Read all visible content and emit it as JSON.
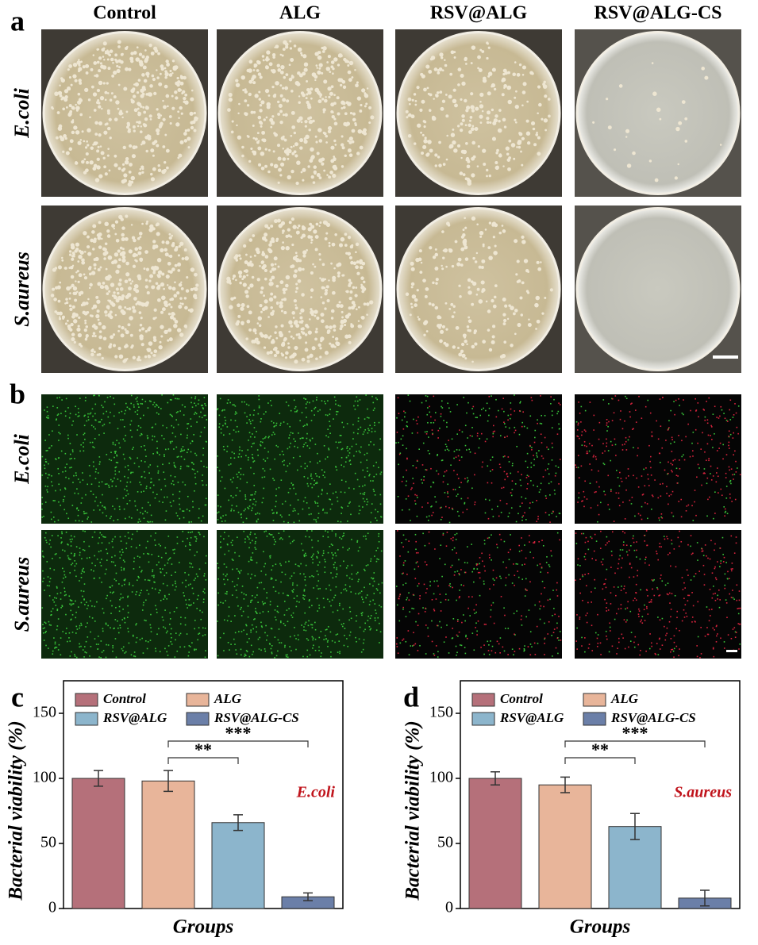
{
  "figure": {
    "panel_labels": [
      "a",
      "b",
      "c",
      "d"
    ],
    "columns": [
      "Control",
      "ALG",
      "RSV@ALG",
      "RSV@ALG-CS"
    ],
    "rows_a": [
      "E.coli",
      "S.aureus"
    ],
    "rows_b": [
      "E.coli",
      "S.aureus"
    ]
  },
  "chart_data": [
    {
      "type": "bar",
      "categories": [
        "Control",
        "ALG",
        "RSV@ALG",
        "RSV@ALG-CS"
      ],
      "values": [
        100,
        98,
        66,
        9
      ],
      "errors": [
        6,
        8,
        6,
        3
      ],
      "colors": [
        "#b5707a",
        "#e8b59a",
        "#8cb5cc",
        "#6b7fa8"
      ],
      "xlabel": "Groups",
      "ylabel": "Bacterial viability (%)",
      "annotation": "E.coli",
      "significance": [
        "**",
        "***"
      ],
      "legend": true,
      "ylim": [
        0,
        175
      ],
      "yticks": [
        0,
        50,
        100,
        150
      ]
    },
    {
      "type": "bar",
      "categories": [
        "Control",
        "ALG",
        "RSV@ALG",
        "RSV@ALG-CS"
      ],
      "values": [
        100,
        95,
        63,
        8
      ],
      "errors": [
        5,
        6,
        10,
        6
      ],
      "colors": [
        "#b5707a",
        "#e8b59a",
        "#8cb5cc",
        "#6b7fa8"
      ],
      "xlabel": "Groups",
      "ylabel": "Bacterial viability (%)",
      "annotation": "S.aureus",
      "significance": [
        "**",
        "***"
      ],
      "legend": true,
      "ylim": [
        0,
        175
      ],
      "yticks": [
        0,
        50,
        100,
        150
      ]
    }
  ]
}
